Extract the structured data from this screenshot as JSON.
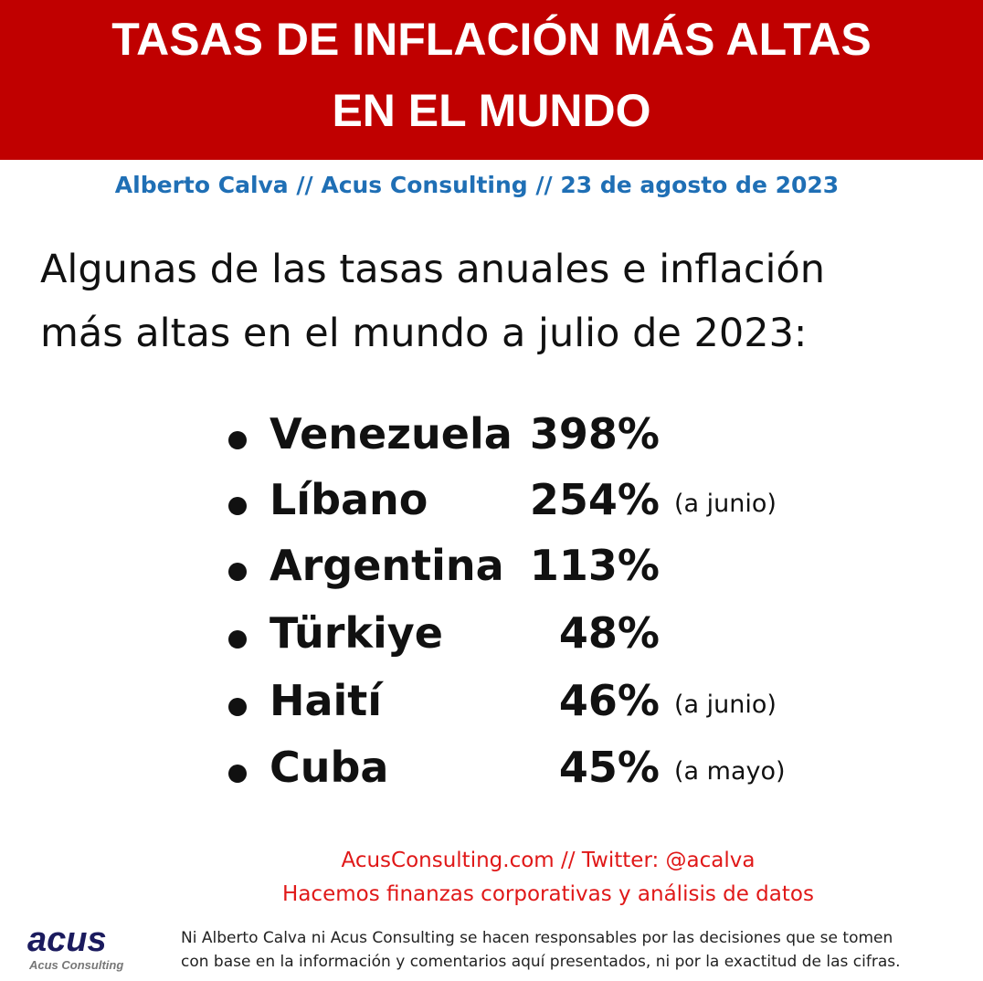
{
  "header": {
    "title_lines": [
      "TASAS DE INFLACIÓN MÁS ALTAS",
      "EN EL MUNDO"
    ]
  },
  "byline": "Alberto Calva // Acus Consulting // 23 de agosto de 2023",
  "intro_lines": [
    "Algunas de las tasas anuales e inflación",
    "más altas en el mundo a julio de 2023:"
  ],
  "list": [
    {
      "country": "Venezuela",
      "rate": "398%"
    },
    {
      "country": "Líbano",
      "rate": "254%",
      "note": "(a junio)"
    },
    {
      "country": "Argentina",
      "rate": "113%"
    },
    {
      "country": "Türkiye",
      "rate": "48%"
    },
    {
      "country": "Haití",
      "rate": "46%",
      "note": "(a junio)"
    },
    {
      "country": "Cuba",
      "rate": "45%",
      "note": "(a mayo)"
    }
  ],
  "footer": {
    "lines": [
      "AcusConsulting.com // Twitter: @acalva",
      "Hacemos finanzas corporativas y análisis de datos"
    ]
  },
  "logo": {
    "mark": "acus",
    "name": "Acus Consulting"
  },
  "disclaimer_lines": [
    "Ni Alberto Calva ni Acus Consulting se hacen responsables por las decisiones que se tomen",
    "con base en la información y comentarios aquí presentados, ni por la exactitud de las cifras."
  ]
}
